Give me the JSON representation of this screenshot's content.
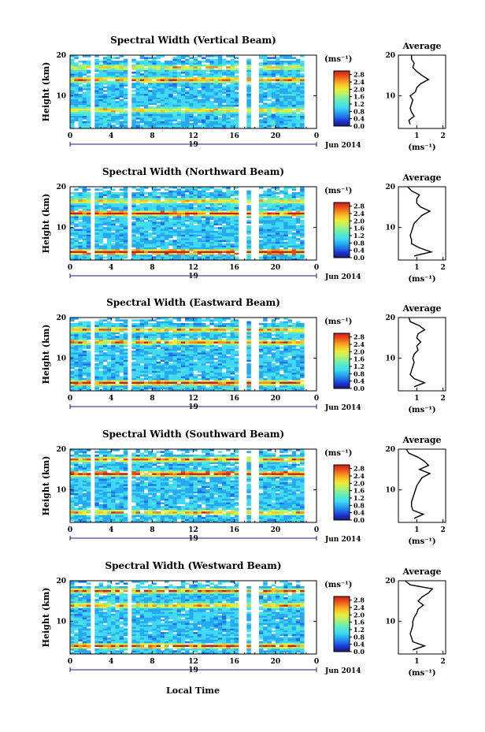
{
  "x_label": "Local Time",
  "date_label": "Jun 2014",
  "day_label": "19",
  "colorbar_unit": "(ms⁻¹)",
  "colorbar_ticks": [
    "2.8",
    "2.4",
    "2.0",
    "1.6",
    "1.2",
    "0.8",
    "0.4",
    "0.0"
  ],
  "avg_title": "Average",
  "avg_xlabel": "(ms⁻¹)",
  "y_label": "Height (km)",
  "colors": {
    "colormap": [
      "#1a1a6e",
      "#1f2fd0",
      "#1f6fe8",
      "#26a9f0",
      "#3fd8f5",
      "#52e8d0",
      "#7ef0a0",
      "#b6f26a",
      "#e8ee3c",
      "#f7c52a",
      "#f58a1e",
      "#e84a1a",
      "#c81e1e"
    ]
  },
  "chart_data": [
    {
      "type": "heatmap",
      "title": "Spectral Width (Vertical Beam)",
      "xlabel": "",
      "ylabel": "Height (km)",
      "x_ticks": [
        "0",
        "4",
        "8",
        "12",
        "16",
        "20",
        "0"
      ],
      "xlim": [
        0,
        24
      ],
      "y_ticks": [
        "20",
        "10"
      ],
      "ylim": [
        2,
        20
      ],
      "colorbar_ticks": [
        "2.8",
        "2.4",
        "2.0",
        "1.6",
        "1.2",
        "0.8",
        "0.4",
        "0.0"
      ],
      "colorbar_range": [
        0,
        3.0
      ],
      "data_gaps_hours": [
        [
          2.0,
          2.4
        ],
        [
          5.8,
          6.0
        ],
        [
          16.6,
          17.1
        ],
        [
          17.5,
          18.4
        ],
        [
          22.8,
          24
        ]
      ],
      "enhanced_layers_km": [
        [
          14.0,
          1.9
        ],
        [
          6.5,
          1.4
        ],
        [
          17.0,
          1.3
        ]
      ],
      "average_profile": {
        "title": "Average",
        "xlabel": "(ms⁻¹)",
        "x_ticks": [
          "1",
          "2"
        ],
        "xlim": [
          0.3,
          2.1
        ],
        "y_ticks": [
          "20",
          "10"
        ],
        "ylim": [
          2,
          20
        ],
        "height_km": [
          3,
          4,
          5,
          6,
          7,
          8,
          9,
          10,
          11,
          12,
          13,
          14,
          15,
          16,
          17,
          18,
          19,
          20
        ],
        "width_ms": [
          0.75,
          0.7,
          0.9,
          0.8,
          0.75,
          0.8,
          0.85,
          0.75,
          0.95,
          1.0,
          1.15,
          1.45,
          1.2,
          1.0,
          0.85,
          0.9,
          0.8,
          0.8
        ]
      }
    },
    {
      "type": "heatmap",
      "title": "Spectral Width (Northward Beam)",
      "xlabel": "",
      "ylabel": "Height (km)",
      "x_ticks": [
        "0",
        "4",
        "8",
        "12",
        "16",
        "20",
        "0"
      ],
      "xlim": [
        0,
        24
      ],
      "y_ticks": [
        "20",
        "10"
      ],
      "ylim": [
        2,
        20
      ],
      "colorbar_ticks": [
        "2.8",
        "2.4",
        "2.0",
        "1.6",
        "1.2",
        "0.8",
        "0.4",
        "0.0"
      ],
      "colorbar_range": [
        0,
        3.0
      ],
      "data_gaps_hours": [
        [
          2.0,
          2.4
        ],
        [
          5.8,
          6.0
        ],
        [
          16.6,
          17.1
        ],
        [
          17.5,
          18.4
        ],
        [
          22.8,
          24
        ]
      ],
      "enhanced_layers_km": [
        [
          13.5,
          2.3
        ],
        [
          4.0,
          2.6
        ],
        [
          16.5,
          1.4
        ]
      ],
      "average_profile": {
        "title": "Average",
        "xlabel": "(ms⁻¹)",
        "x_ticks": [
          "1",
          "2"
        ],
        "xlim": [
          0.3,
          2.1
        ],
        "y_ticks": [
          "20",
          "10"
        ],
        "ylim": [
          2,
          20
        ],
        "height_km": [
          3,
          4,
          5,
          6,
          7,
          8,
          9,
          10,
          11,
          12,
          13,
          14,
          15,
          16,
          17,
          18,
          19,
          20
        ],
        "width_ms": [
          0.9,
          1.55,
          1.1,
          0.8,
          0.8,
          0.75,
          0.8,
          0.85,
          0.9,
          1.05,
          1.2,
          1.5,
          1.15,
          1.0,
          1.0,
          1.1,
          0.8,
          0.65
        ]
      }
    },
    {
      "type": "heatmap",
      "title": "Spectral Width (Eastward Beam)",
      "xlabel": "",
      "ylabel": "Height (km)",
      "x_ticks": [
        "0",
        "4",
        "8",
        "12",
        "16",
        "20",
        "0"
      ],
      "xlim": [
        0,
        24
      ],
      "y_ticks": [
        "20",
        "10"
      ],
      "ylim": [
        2,
        20
      ],
      "colorbar_ticks": [
        "2.8",
        "2.4",
        "2.0",
        "1.6",
        "1.2",
        "0.8",
        "0.4",
        "0.0"
      ],
      "colorbar_range": [
        0,
        3.0
      ],
      "data_gaps_hours": [
        [
          2.0,
          2.4
        ],
        [
          5.8,
          6.0
        ],
        [
          16.6,
          17.1
        ],
        [
          17.5,
          18.4
        ],
        [
          22.8,
          24
        ]
      ],
      "enhanced_layers_km": [
        [
          4.0,
          2.2
        ],
        [
          14.0,
          1.8
        ],
        [
          17.0,
          1.6
        ]
      ],
      "average_profile": {
        "title": "Average",
        "xlabel": "(ms⁻¹)",
        "x_ticks": [
          "1",
          "2"
        ],
        "xlim": [
          0.3,
          2.1
        ],
        "y_ticks": [
          "20",
          "10"
        ],
        "ylim": [
          2,
          20
        ],
        "height_km": [
          3,
          4,
          5,
          6,
          7,
          8,
          9,
          10,
          11,
          12,
          13,
          14,
          15,
          16,
          17,
          18,
          19,
          20
        ],
        "width_ms": [
          0.9,
          1.3,
          0.9,
          0.75,
          0.8,
          0.85,
          0.9,
          0.85,
          0.9,
          1.05,
          1.0,
          1.15,
          1.0,
          1.05,
          1.3,
          1.1,
          0.75,
          0.7
        ]
      }
    },
    {
      "type": "heatmap",
      "title": "Spectral Width (Southward Beam)",
      "xlabel": "",
      "ylabel": "Height (km)",
      "x_ticks": [
        "0",
        "4",
        "8",
        "12",
        "16",
        "20",
        "0"
      ],
      "xlim": [
        0,
        24
      ],
      "y_ticks": [
        "20",
        "10"
      ],
      "ylim": [
        2,
        20
      ],
      "colorbar_ticks": [
        "2.8",
        "2.4",
        "2.0",
        "1.6",
        "1.2",
        "0.8",
        "0.4",
        "0.0"
      ],
      "colorbar_range": [
        0,
        3.0
      ],
      "data_gaps_hours": [
        [
          2.0,
          2.4
        ],
        [
          5.8,
          6.0
        ],
        [
          16.6,
          17.1
        ],
        [
          17.5,
          18.4
        ],
        [
          22.8,
          24
        ]
      ],
      "enhanced_layers_km": [
        [
          14.0,
          2.5
        ],
        [
          17.5,
          1.7
        ],
        [
          4.5,
          1.6
        ]
      ],
      "average_profile": {
        "title": "Average",
        "xlabel": "(ms⁻¹)",
        "x_ticks": [
          "1",
          "2"
        ],
        "xlim": [
          0.3,
          2.1
        ],
        "y_ticks": [
          "20",
          "10"
        ],
        "ylim": [
          2,
          20
        ],
        "height_km": [
          3,
          4,
          5,
          6,
          7,
          8,
          9,
          10,
          11,
          12,
          13,
          14,
          15,
          16,
          17,
          18,
          19,
          20
        ],
        "width_ms": [
          0.9,
          1.25,
          0.85,
          0.8,
          0.8,
          0.85,
          0.9,
          0.95,
          1.0,
          1.1,
          1.2,
          1.5,
          1.1,
          1.45,
          1.3,
          1.05,
          0.7,
          0.6
        ]
      }
    },
    {
      "type": "heatmap",
      "title": "Spectral Width (Westward Beam)",
      "xlabel": "Local Time",
      "ylabel": "Height (km)",
      "x_ticks": [
        "0",
        "4",
        "8",
        "12",
        "16",
        "20",
        "0"
      ],
      "xlim": [
        0,
        24
      ],
      "y_ticks": [
        "20",
        "10"
      ],
      "ylim": [
        2,
        20
      ],
      "colorbar_ticks": [
        "2.8",
        "2.4",
        "2.0",
        "1.6",
        "1.2",
        "0.8",
        "0.4",
        "0.0"
      ],
      "colorbar_range": [
        0,
        3.0
      ],
      "data_gaps_hours": [
        [
          2.0,
          2.4
        ],
        [
          5.8,
          6.0
        ],
        [
          16.6,
          17.1
        ],
        [
          17.5,
          18.4
        ],
        [
          22.8,
          24
        ]
      ],
      "enhanced_layers_km": [
        [
          4.0,
          2.0
        ],
        [
          17.5,
          1.8
        ],
        [
          14.0,
          1.6
        ]
      ],
      "average_profile": {
        "title": "Average",
        "xlabel": "(ms⁻¹)",
        "x_ticks": [
          "1",
          "2"
        ],
        "xlim": [
          0.3,
          2.1
        ],
        "y_ticks": [
          "20",
          "10"
        ],
        "ylim": [
          2,
          20
        ],
        "height_km": [
          3,
          4,
          5,
          6,
          7,
          8,
          9,
          10,
          11,
          12,
          13,
          14,
          15,
          16,
          17,
          18,
          19,
          20
        ],
        "width_ms": [
          0.85,
          1.3,
          0.85,
          0.8,
          0.75,
          0.8,
          0.85,
          0.85,
          0.9,
          1.0,
          1.05,
          1.25,
          1.05,
          1.2,
          1.45,
          1.6,
          0.75,
          0.55
        ]
      }
    }
  ]
}
